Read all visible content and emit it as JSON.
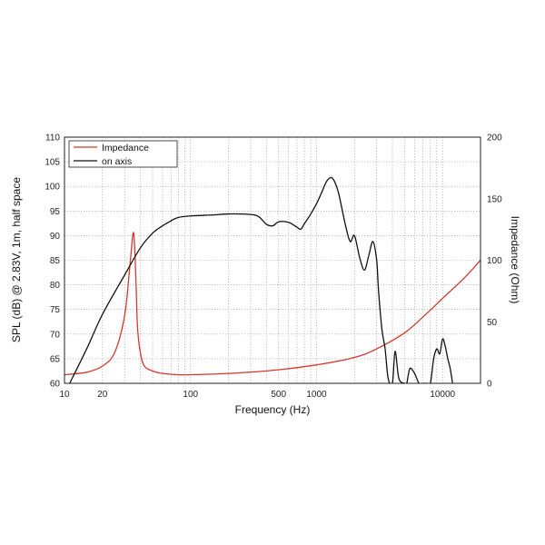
{
  "chart_data": {
    "type": "line",
    "xlabel": "Frequency (Hz)",
    "ylabel_left": "SPL (dB) @ 2.83V, 1m, half space",
    "ylabel_right": "Impedance (Ohm)",
    "x_scale": "log",
    "xlim": [
      10,
      20000
    ],
    "ylim_left": [
      60,
      110
    ],
    "ylim_right": [
      0,
      200
    ],
    "x_ticks": [
      "10",
      "20",
      "100",
      "500",
      "1000",
      "10000"
    ],
    "y_left_ticks": [
      "60",
      "65",
      "70",
      "75",
      "80",
      "85",
      "90",
      "95",
      "100",
      "105",
      "110"
    ],
    "y_right_ticks": [
      "0",
      "50",
      "100",
      "150",
      "200"
    ],
    "grid": true,
    "legend_position": "top-left",
    "series": [
      {
        "name": "Impedance",
        "axis": "right",
        "color": "#d33a2c",
        "x": [
          10,
          15,
          20,
          25,
          30,
          33,
          35,
          36,
          37,
          38,
          40,
          43,
          50,
          60,
          80,
          100,
          200,
          500,
          1000,
          2000,
          3000,
          5000,
          7000,
          10000,
          15000,
          20000
        ],
        "y": [
          7,
          9,
          14,
          25,
          55,
          95,
          122,
          111,
          80,
          45,
          25,
          14,
          10,
          8,
          7,
          7,
          8,
          11,
          15,
          21,
          28,
          41,
          54,
          69,
          86,
          100
        ]
      },
      {
        "name": "on axis",
        "axis": "left",
        "color": "#111111",
        "x": [
          11,
          15,
          20,
          30,
          40,
          50,
          60,
          70,
          80,
          100,
          150,
          200,
          300,
          350,
          400,
          450,
          500,
          600,
          700,
          750,
          800,
          900,
          1000,
          1100,
          1200,
          1300,
          1350,
          1400,
          1500,
          1700,
          1850,
          2000,
          2200,
          2400,
          2600,
          2800,
          3000,
          3100,
          3300,
          3500,
          3700,
          4000,
          4200,
          4500,
          5000,
          5200,
          5500,
          6000,
          6500,
          7000,
          7500,
          8000,
          8500,
          9000,
          9500,
          10000,
          10500,
          11000,
          11500,
          12000
        ],
        "y": [
          60,
          67,
          74,
          82,
          87.5,
          90.5,
          92,
          93,
          93.7,
          94,
          94.2,
          94.4,
          94.3,
          93.8,
          92.3,
          92.0,
          92.8,
          92.7,
          91.7,
          91.3,
          92.4,
          94.4,
          96.5,
          98.8,
          101,
          101.8,
          101.5,
          100.8,
          98.5,
          92,
          88.8,
          90.0,
          85.5,
          83.0,
          86.0,
          88.8,
          85.0,
          79,
          71,
          67.0,
          61.0,
          60,
          66.5,
          61.0,
          60,
          60,
          63.0,
          62.0,
          60,
          60,
          60,
          60,
          65,
          67.0,
          66.0,
          69,
          67.5,
          65,
          63,
          60
        ]
      }
    ]
  }
}
